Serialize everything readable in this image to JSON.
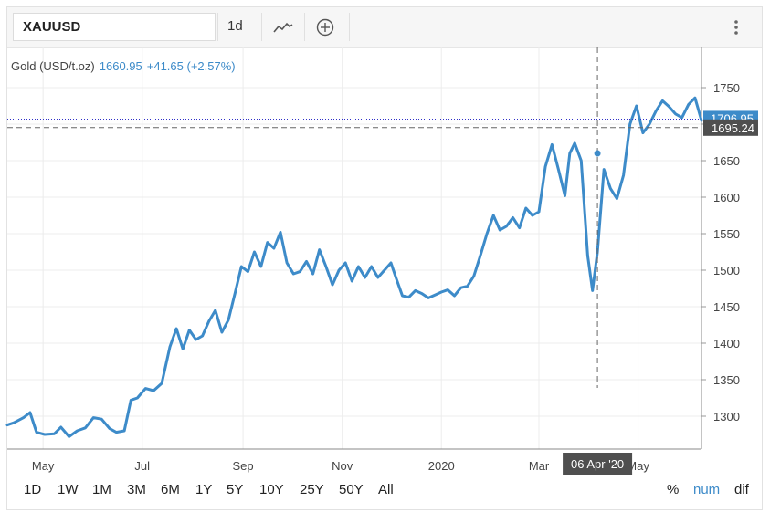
{
  "toolbar": {
    "symbol": "XAUUSD",
    "interval": "1d",
    "icons": [
      "line-chart-icon",
      "add-circle-icon",
      "more-vertical-icon"
    ]
  },
  "legend": {
    "name": "Gold (USD/t.oz)",
    "price": "1660.95",
    "change": "+41.65 (+2.57%)"
  },
  "price_labels": {
    "last": "1706.95",
    "crosshair": "1695.24",
    "crosshair_date": "06 Apr '20"
  },
  "range_buttons": [
    "1D",
    "1W",
    "1M",
    "3M",
    "6M",
    "1Y",
    "5Y",
    "10Y",
    "25Y",
    "50Y",
    "All"
  ],
  "mode_buttons": [
    "%",
    "num",
    "dif"
  ],
  "active_mode": "num",
  "colors": {
    "line": "#3d8bc9",
    "accent": "#3d8bc9",
    "label_bg": "#4f4f4f",
    "last_price_line": "#3030c8"
  },
  "chart_data": {
    "type": "line",
    "title": "Gold (USD/t.oz)",
    "xlabel": "",
    "ylabel": "",
    "x_tick_labels": [
      "May",
      "Jul",
      "Sep",
      "Nov",
      "2020",
      "Mar",
      "May"
    ],
    "y_ticks": [
      1300,
      1350,
      1400,
      1450,
      1500,
      1550,
      1600,
      1650,
      1700,
      1750
    ],
    "ylim": [
      1255,
      1805
    ],
    "x_range": [
      "2019-04-09",
      "2020-06-09"
    ],
    "grid": true,
    "legend": "top-left",
    "series": [
      {
        "name": "Gold (USD/t.oz)",
        "points": [
          [
            "2019-04-09",
            1288
          ],
          [
            "2019-04-13",
            1291
          ],
          [
            "2019-04-19",
            1298
          ],
          [
            "2019-04-23",
            1305
          ],
          [
            "2019-04-27",
            1278
          ],
          [
            "2019-05-02",
            1275
          ],
          [
            "2019-05-08",
            1276
          ],
          [
            "2019-05-12",
            1285
          ],
          [
            "2019-05-17",
            1272
          ],
          [
            "2019-05-22",
            1280
          ],
          [
            "2019-05-27",
            1284
          ],
          [
            "2019-06-01",
            1298
          ],
          [
            "2019-06-06",
            1296
          ],
          [
            "2019-06-11",
            1283
          ],
          [
            "2019-06-15",
            1278
          ],
          [
            "2019-06-20",
            1280
          ],
          [
            "2019-06-24",
            1322
          ],
          [
            "2019-06-28",
            1325
          ],
          [
            "2019-07-03",
            1338
          ],
          [
            "2019-07-08",
            1335
          ],
          [
            "2019-07-13",
            1345
          ],
          [
            "2019-07-18",
            1395
          ],
          [
            "2019-07-22",
            1420
          ],
          [
            "2019-07-26",
            1392
          ],
          [
            "2019-07-30",
            1418
          ],
          [
            "2019-08-03",
            1405
          ],
          [
            "2019-08-07",
            1410
          ],
          [
            "2019-08-11",
            1430
          ],
          [
            "2019-08-15",
            1445
          ],
          [
            "2019-08-19",
            1415
          ],
          [
            "2019-08-23",
            1432
          ],
          [
            "2019-08-27",
            1468
          ],
          [
            "2019-08-31",
            1505
          ],
          [
            "2019-09-04",
            1498
          ],
          [
            "2019-09-08",
            1525
          ],
          [
            "2019-09-12",
            1505
          ],
          [
            "2019-09-16",
            1538
          ],
          [
            "2019-09-20",
            1530
          ],
          [
            "2019-09-24",
            1552
          ],
          [
            "2019-09-28",
            1510
          ],
          [
            "2019-10-02",
            1495
          ],
          [
            "2019-10-06",
            1498
          ],
          [
            "2019-10-10",
            1512
          ],
          [
            "2019-10-14",
            1495
          ],
          [
            "2019-10-18",
            1528
          ],
          [
            "2019-10-22",
            1505
          ],
          [
            "2019-10-26",
            1480
          ],
          [
            "2019-10-30",
            1500
          ],
          [
            "2019-11-03",
            1510
          ],
          [
            "2019-11-07",
            1485
          ],
          [
            "2019-11-11",
            1505
          ],
          [
            "2019-11-15",
            1490
          ],
          [
            "2019-11-19",
            1505
          ],
          [
            "2019-11-23",
            1490
          ],
          [
            "2019-11-27",
            1500
          ],
          [
            "2019-12-01",
            1510
          ],
          [
            "2019-12-04",
            1490
          ],
          [
            "2019-12-08",
            1465
          ],
          [
            "2019-12-12",
            1463
          ],
          [
            "2019-12-16",
            1472
          ],
          [
            "2019-12-20",
            1468
          ],
          [
            "2019-12-24",
            1462
          ],
          [
            "2019-12-28",
            1466
          ],
          [
            "2020-01-01",
            1470
          ],
          [
            "2020-01-05",
            1473
          ],
          [
            "2020-01-09",
            1465
          ],
          [
            "2020-01-13",
            1476
          ],
          [
            "2020-01-17",
            1478
          ],
          [
            "2020-01-21",
            1492
          ],
          [
            "2020-01-25",
            1520
          ],
          [
            "2020-01-29",
            1550
          ],
          [
            "2020-02-02",
            1575
          ],
          [
            "2020-02-06",
            1555
          ],
          [
            "2020-02-10",
            1560
          ],
          [
            "2020-02-14",
            1572
          ],
          [
            "2020-02-18",
            1558
          ],
          [
            "2020-02-22",
            1585
          ],
          [
            "2020-02-26",
            1575
          ],
          [
            "2020-03-01",
            1580
          ],
          [
            "2020-03-05",
            1642
          ],
          [
            "2020-03-09",
            1672
          ],
          [
            "2020-03-13",
            1638
          ],
          [
            "2020-03-17",
            1602
          ],
          [
            "2020-03-20",
            1660
          ],
          [
            "2020-03-23",
            1674
          ],
          [
            "2020-03-27",
            1650
          ],
          [
            "2020-03-31",
            1520
          ],
          [
            "2020-04-03",
            1472
          ],
          [
            "2020-04-06",
            1525
          ],
          [
            "2020-04-10",
            1638
          ],
          [
            "2020-04-14",
            1612
          ],
          [
            "2020-04-18",
            1598
          ],
          [
            "2020-04-22",
            1630
          ],
          [
            "2020-04-26",
            1700
          ],
          [
            "2020-04-30",
            1725
          ],
          [
            "2020-05-04",
            1688
          ],
          [
            "2020-05-08",
            1700
          ],
          [
            "2020-05-12",
            1718
          ],
          [
            "2020-05-16",
            1732
          ],
          [
            "2020-05-20",
            1724
          ],
          [
            "2020-05-24",
            1714
          ],
          [
            "2020-05-28",
            1709
          ],
          [
            "2020-06-01",
            1727
          ],
          [
            "2020-06-05",
            1736
          ],
          [
            "2020-06-09",
            1705
          ]
        ]
      }
    ],
    "crosshair": {
      "x": "2020-04-06",
      "y": 1695.24
    },
    "last_value": 1706.95
  }
}
